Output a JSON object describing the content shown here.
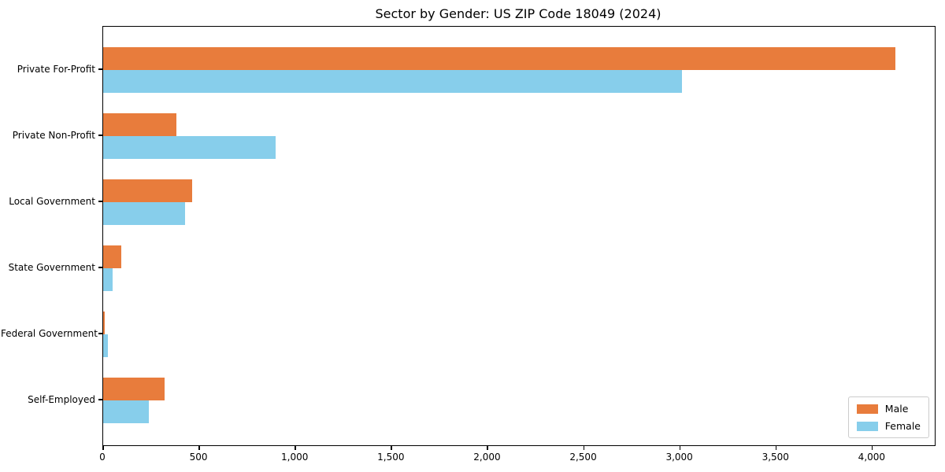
{
  "title": "Sector by Gender: US ZIP Code 18049 (2024)",
  "colors": {
    "male": "#e87c3c",
    "female": "#87ceeb",
    "spine": "#000000",
    "legend_border": "#cccccc",
    "background": "#ffffff"
  },
  "legend": {
    "position": "lower right",
    "items": [
      {
        "label": "Male",
        "color": "#e87c3c"
      },
      {
        "label": "Female",
        "color": "#87ceeb"
      }
    ]
  },
  "chart_data": {
    "type": "bar",
    "orientation": "horizontal",
    "title": "Sector by Gender: US ZIP Code 18049 (2024)",
    "categories": [
      "Private For-Profit",
      "Private Non-Profit",
      "Local Government",
      "State Government",
      "Federal Government",
      "Self-Employed"
    ],
    "series": [
      {
        "name": "Male",
        "color": "#e87c3c",
        "values": [
          4118,
          381,
          463,
          94,
          10,
          319
        ]
      },
      {
        "name": "Female",
        "color": "#87ceeb",
        "values": [
          3009,
          897,
          426,
          49,
          25,
          237
        ]
      }
    ],
    "xlabel": "",
    "ylabel": "",
    "xlim": [
      0,
      4324
    ],
    "xticks": [
      0,
      500,
      1000,
      1500,
      2000,
      2500,
      3000,
      3500,
      4000
    ],
    "xtick_labels": [
      "0",
      "500",
      "1,000",
      "1,500",
      "2,000",
      "2,500",
      "3,000",
      "3,500",
      "4,000"
    ],
    "grid": false,
    "legend_position": "lower right"
  }
}
